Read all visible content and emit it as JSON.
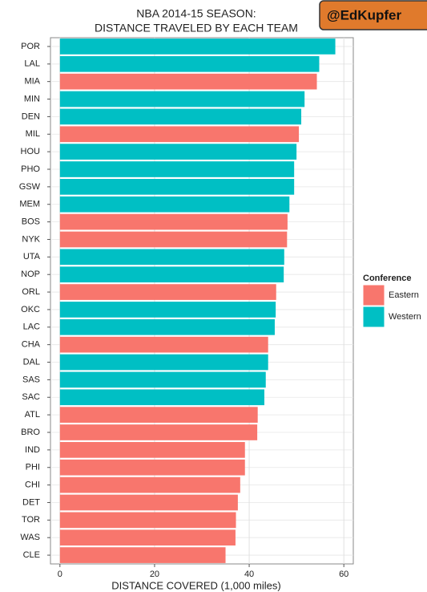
{
  "chart_data": {
    "type": "barh",
    "title": "NBA 2014-15 SEASON:",
    "subtitle": "DISTANCE TRAVELED BY EACH TEAM",
    "x_label": "DISTANCE COVERED (1,000 miles)",
    "watermark": "@EdKupfer",
    "legend_title": "Conference",
    "categories": [
      "POR",
      "LAL",
      "MIA",
      "MIN",
      "DEN",
      "MIL",
      "HOU",
      "PHO",
      "GSW",
      "MEM",
      "BOS",
      "NYK",
      "UTA",
      "NOP",
      "ORL",
      "OKC",
      "LAC",
      "CHA",
      "DAL",
      "SAS",
      "SAC",
      "ATL",
      "BRO",
      "IND",
      "PHI",
      "CHI",
      "DET",
      "TOR",
      "WAS",
      "CLE"
    ],
    "series": [
      {
        "name": "Eastern",
        "color": "#f8766d",
        "values": [
          null,
          null,
          54.3,
          null,
          null,
          50.5,
          null,
          null,
          null,
          null,
          48.1,
          48.0,
          null,
          null,
          45.7,
          null,
          null,
          44.0,
          null,
          null,
          null,
          41.8,
          41.7,
          39.1,
          39.1,
          38.1,
          37.6,
          37.2,
          37.1,
          35.0
        ]
      },
      {
        "name": "Western",
        "color": "#00bfc4",
        "values": [
          58.2,
          54.8,
          null,
          51.7,
          51.0,
          null,
          50.0,
          49.5,
          49.5,
          48.5,
          null,
          null,
          47.4,
          47.3,
          null,
          45.6,
          45.4,
          null,
          44.0,
          43.5,
          43.2,
          null,
          null,
          null,
          null,
          null,
          null,
          null,
          null,
          null
        ]
      }
    ],
    "xlim": [
      -2,
      62
    ],
    "xticks": [
      0,
      20,
      40,
      60
    ],
    "grid": true
  }
}
